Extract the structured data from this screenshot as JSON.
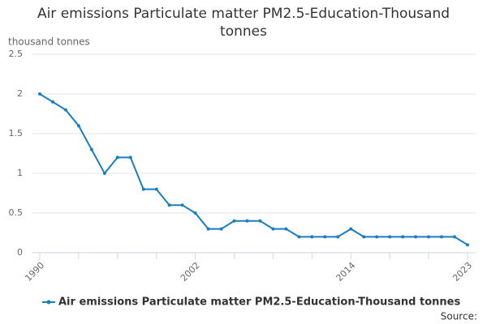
{
  "chart_data": {
    "type": "line",
    "title": "Air emissions Particulate matter PM2.5-Education-Thousand tonnes",
    "y_label": "thousand tonnes",
    "source": "Source:",
    "x": [
      1990,
      1991,
      1992,
      1993,
      1994,
      1995,
      1996,
      1997,
      1998,
      1999,
      2000,
      2001,
      2002,
      2003,
      2004,
      2005,
      2006,
      2007,
      2008,
      2009,
      2010,
      2011,
      2012,
      2013,
      2014,
      2015,
      2016,
      2017,
      2018,
      2019,
      2020,
      2021,
      2022,
      2023
    ],
    "series": [
      {
        "name": "Air emissions Particulate matter PM2.5-Education-Thousand tonnes",
        "color": "#1a7dc0",
        "values": [
          2.0,
          1.9,
          1.8,
          1.6,
          1.3,
          1.0,
          1.2,
          1.2,
          0.8,
          0.8,
          0.6,
          0.6,
          0.5,
          0.3,
          0.3,
          0.4,
          0.4,
          0.4,
          0.3,
          0.3,
          0.2,
          0.2,
          0.2,
          0.2,
          0.3,
          0.2,
          0.2,
          0.2,
          0.2,
          0.2,
          0.2,
          0.2,
          0.2,
          0.1
        ]
      }
    ],
    "xlim": [
      1990,
      2023
    ],
    "xticks": [
      1990,
      2002,
      2014,
      2023
    ],
    "xminorticks": [
      1993,
      1996,
      1999,
      2005,
      2008,
      2011,
      2017,
      2020
    ],
    "ylim": [
      0,
      2.5
    ],
    "yticks": [
      0,
      0.5,
      1,
      1.5,
      2,
      2.5
    ],
    "grid": true
  }
}
